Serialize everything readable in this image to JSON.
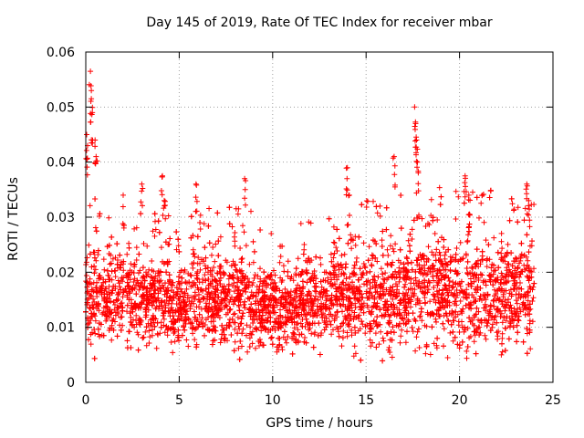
{
  "chart_data": {
    "type": "scatter",
    "title": "Day 145 of 2019, Rate Of TEC Index for receiver mbar",
    "xlabel": "GPS time / hours",
    "ylabel": "ROTI / TECUs",
    "xlim": [
      0,
      25
    ],
    "ylim": [
      0,
      0.06
    ],
    "xticks": [
      0,
      5,
      10,
      15,
      20,
      25
    ],
    "yticks": [
      0,
      0.01,
      0.02,
      0.03,
      0.04,
      0.05,
      0.06
    ],
    "xtick_labels": [
      "0",
      "5",
      "10",
      "15",
      "20",
      "25"
    ],
    "ytick_labels": [
      "0",
      "0.01",
      "0.02",
      "0.03",
      "0.04",
      "0.05",
      "0.06"
    ],
    "grid": true,
    "marker": "+",
    "series": [
      {
        "name": "ROTI",
        "color": "#ff0000",
        "envelope": {
          "x": [
            0,
            0.5,
            1,
            2,
            3,
            4,
            5,
            6,
            7,
            8,
            9,
            10,
            11,
            12,
            13,
            14,
            15,
            16,
            17,
            18,
            19,
            20,
            21,
            22,
            23,
            24
          ],
          "p10": [
            0.006,
            0.006,
            0.006,
            0.006,
            0.005,
            0.006,
            0.005,
            0.006,
            0.006,
            0.006,
            0.006,
            0.006,
            0.006,
            0.006,
            0.006,
            0.006,
            0.005,
            0.005,
            0.005,
            0.005,
            0.004,
            0.004,
            0.004,
            0.005,
            0.005,
            0.005
          ],
          "p90": [
            0.024,
            0.026,
            0.023,
            0.024,
            0.023,
            0.025,
            0.022,
            0.023,
            0.024,
            0.024,
            0.023,
            0.021,
            0.021,
            0.022,
            0.023,
            0.024,
            0.025,
            0.025,
            0.027,
            0.027,
            0.028,
            0.027,
            0.027,
            0.027,
            0.027,
            0.025
          ]
        },
        "peaks": [
          {
            "x": 0.05,
            "y": 0.045
          },
          {
            "x": 0.1,
            "y": 0.043
          },
          {
            "x": 0.25,
            "y": 0.0565
          },
          {
            "x": 0.3,
            "y": 0.053
          },
          {
            "x": 0.35,
            "y": 0.049
          },
          {
            "x": 0.5,
            "y": 0.044
          },
          {
            "x": 0.55,
            "y": 0.041
          },
          {
            "x": 2.0,
            "y": 0.034
          },
          {
            "x": 3.0,
            "y": 0.036
          },
          {
            "x": 4.1,
            "y": 0.0375
          },
          {
            "x": 4.2,
            "y": 0.033
          },
          {
            "x": 5.9,
            "y": 0.036
          },
          {
            "x": 8.5,
            "y": 0.037
          },
          {
            "x": 14.0,
            "y": 0.039
          },
          {
            "x": 14.1,
            "y": 0.034
          },
          {
            "x": 16.5,
            "y": 0.041
          },
          {
            "x": 17.6,
            "y": 0.05
          },
          {
            "x": 17.65,
            "y": 0.047
          },
          {
            "x": 17.7,
            "y": 0.044
          },
          {
            "x": 17.75,
            "y": 0.04
          },
          {
            "x": 20.3,
            "y": 0.0375
          },
          {
            "x": 20.5,
            "y": 0.034
          },
          {
            "x": 23.6,
            "y": 0.036
          },
          {
            "x": 23.7,
            "y": 0.033
          }
        ]
      }
    ]
  }
}
